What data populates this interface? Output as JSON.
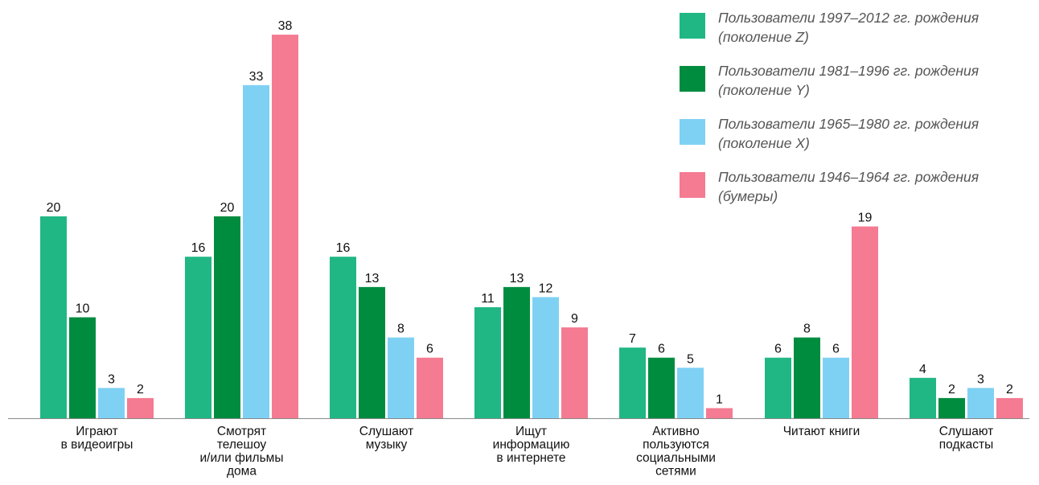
{
  "chart_data": {
    "type": "bar",
    "categories": [
      [
        "Играют",
        "в видеоигры"
      ],
      [
        "Смотрят",
        "телешоу",
        "и/или фильмы",
        "дома"
      ],
      [
        "Слушают",
        "музыку"
      ],
      [
        "Ищут",
        "информацию",
        "в интернете"
      ],
      [
        "Активно",
        "пользуются",
        "социальными",
        "сетями"
      ],
      [
        "Читают книги"
      ],
      [
        "Слушают",
        "подкасты"
      ]
    ],
    "series": [
      {
        "name": "Пользователи 1997–2012 гг. рождения (поколение Z)",
        "color": "#20b784",
        "values": [
          20,
          16,
          16,
          11,
          7,
          6,
          4
        ]
      },
      {
        "name": "Пользователи 1981–1996 гг. рождения (поколение Y)",
        "color": "#008c3f",
        "values": [
          10,
          20,
          13,
          13,
          6,
          8,
          2
        ]
      },
      {
        "name": "Пользователи 1965–1980 гг. рождения (поколение X)",
        "color": "#7fd1f4",
        "values": [
          3,
          33,
          8,
          12,
          5,
          6,
          3
        ]
      },
      {
        "name": "Пользователи 1946–1964 гг. рождения (бумеры)",
        "color": "#f47b92",
        "values": [
          2,
          38,
          6,
          9,
          1,
          19,
          2
        ]
      }
    ],
    "ylim": [
      0,
      40
    ],
    "grid": false,
    "legend_position": "top-right",
    "title": "",
    "xlabel": "",
    "ylabel": ""
  }
}
